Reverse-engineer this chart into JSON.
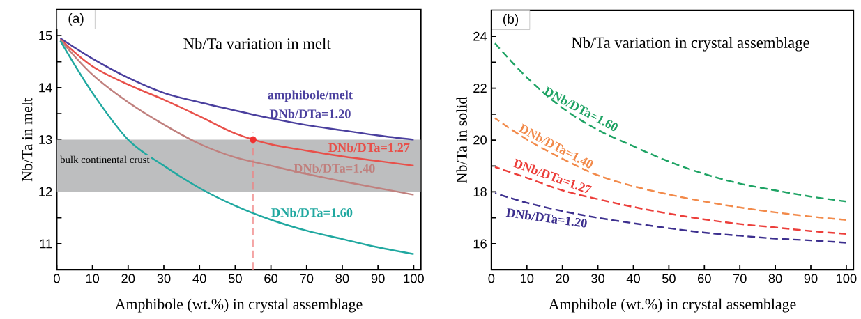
{
  "chart_data": [
    {
      "type": "line",
      "title": "Nb/Ta variation in melt",
      "xlabel": "Amphibole (wt.%) in crystal assemblage",
      "ylabel": "Nb/Ta in melt",
      "annotations": [
        "(a)",
        "amphibole/melt"
      ],
      "xlim": [
        0,
        102
      ],
      "ylim": [
        10.5,
        15.5
      ],
      "xticks": [
        0,
        10,
        20,
        30,
        40,
        50,
        60,
        70,
        80,
        90,
        100
      ],
      "yticks": [
        11,
        {
          "value": 11.5,
          "label": null
        },
        12,
        {
          "value": 12.5,
          "label": null
        },
        13,
        {
          "value": 13.5,
          "label": null
        },
        14,
        {
          "value": 14.5,
          "label": null
        },
        15
      ],
      "x": [
        1,
        10,
        20,
        30,
        40,
        50,
        60,
        70,
        80,
        90,
        100
      ],
      "bands": [
        {
          "axis": "y",
          "from": 12,
          "to": 13,
          "label": "bulk continental crust",
          "color": "#bdbebf"
        }
      ],
      "ref_lines": [
        {
          "axis": "x",
          "value": 55,
          "color": "#f08080",
          "line_style": "dashed"
        }
      ],
      "series": [
        {
          "name": "DNb/DTa=1.20",
          "color": "#4a3f9e",
          "values": [
            14.95,
            14.56,
            14.19,
            13.9,
            13.72,
            13.56,
            13.41,
            13.28,
            13.18,
            13.08,
            13.0
          ]
        },
        {
          "name": "DNb/DTa=1.27",
          "color": "#e8504a",
          "values": [
            14.93,
            14.41,
            14.06,
            13.77,
            13.45,
            13.12,
            12.91,
            12.79,
            12.68,
            12.59,
            12.5
          ]
        },
        {
          "name": "DNb/DTa=1.40",
          "color": "#c0807e",
          "values": [
            14.92,
            14.25,
            13.72,
            13.29,
            12.92,
            12.66,
            12.5,
            12.34,
            12.2,
            12.07,
            11.94
          ]
        },
        {
          "name": "DNb/DTa=1.60",
          "color": "#20a8a0",
          "values": [
            14.9,
            13.9,
            13.0,
            12.5,
            12.07,
            11.73,
            11.46,
            11.25,
            11.09,
            10.93,
            10.8
          ]
        },
        {
          "type": "scatter",
          "color": "#f03030",
          "x": [
            55
          ],
          "values": [
            13.0
          ]
        }
      ]
    },
    {
      "type": "line",
      "title": "Nb/Ta variation in crystal assemblage",
      "xlabel": "Amphibole (wt.%) in crystal assemblage",
      "ylabel": "Nb/Ta in solid",
      "annotations": [
        "(b)"
      ],
      "xlim": [
        0,
        102
      ],
      "ylim": [
        15,
        25
      ],
      "xticks": [
        0,
        10,
        20,
        30,
        40,
        50,
        60,
        70,
        80,
        90,
        100
      ],
      "yticks": [
        16,
        {
          "value": 17,
          "label": null
        },
        18,
        {
          "value": 19,
          "label": null
        },
        20,
        {
          "value": 21,
          "label": null
        },
        22,
        {
          "value": 23,
          "label": null
        },
        24
      ],
      "x": [
        1,
        10,
        20,
        30,
        40,
        50,
        60,
        70,
        80,
        90,
        100
      ],
      "line_style": "dashed",
      "series": [
        {
          "name": "DNb/DTa=1.60",
          "color": "#1ea364",
          "values": [
            23.73,
            22.41,
            21.24,
            20.39,
            19.76,
            19.17,
            18.69,
            18.32,
            18.06,
            17.82,
            17.63
          ]
        },
        {
          "name": "DNb/DTa=1.40",
          "color": "#f28a4a",
          "values": [
            20.84,
            20.02,
            19.28,
            18.64,
            18.22,
            17.9,
            17.63,
            17.4,
            17.21,
            17.05,
            16.92
          ]
        },
        {
          "name": "DNb/DTa=1.27",
          "color": "#ec3e3a",
          "values": [
            18.96,
            18.54,
            18.06,
            17.72,
            17.42,
            17.16,
            16.94,
            16.76,
            16.63,
            16.49,
            16.38
          ]
        },
        {
          "name": "DNb/DTa=1.20",
          "color": "#3c2f8e",
          "values": [
            17.95,
            17.58,
            17.26,
            17.0,
            16.79,
            16.6,
            16.43,
            16.31,
            16.2,
            16.13,
            16.04
          ]
        }
      ]
    }
  ]
}
